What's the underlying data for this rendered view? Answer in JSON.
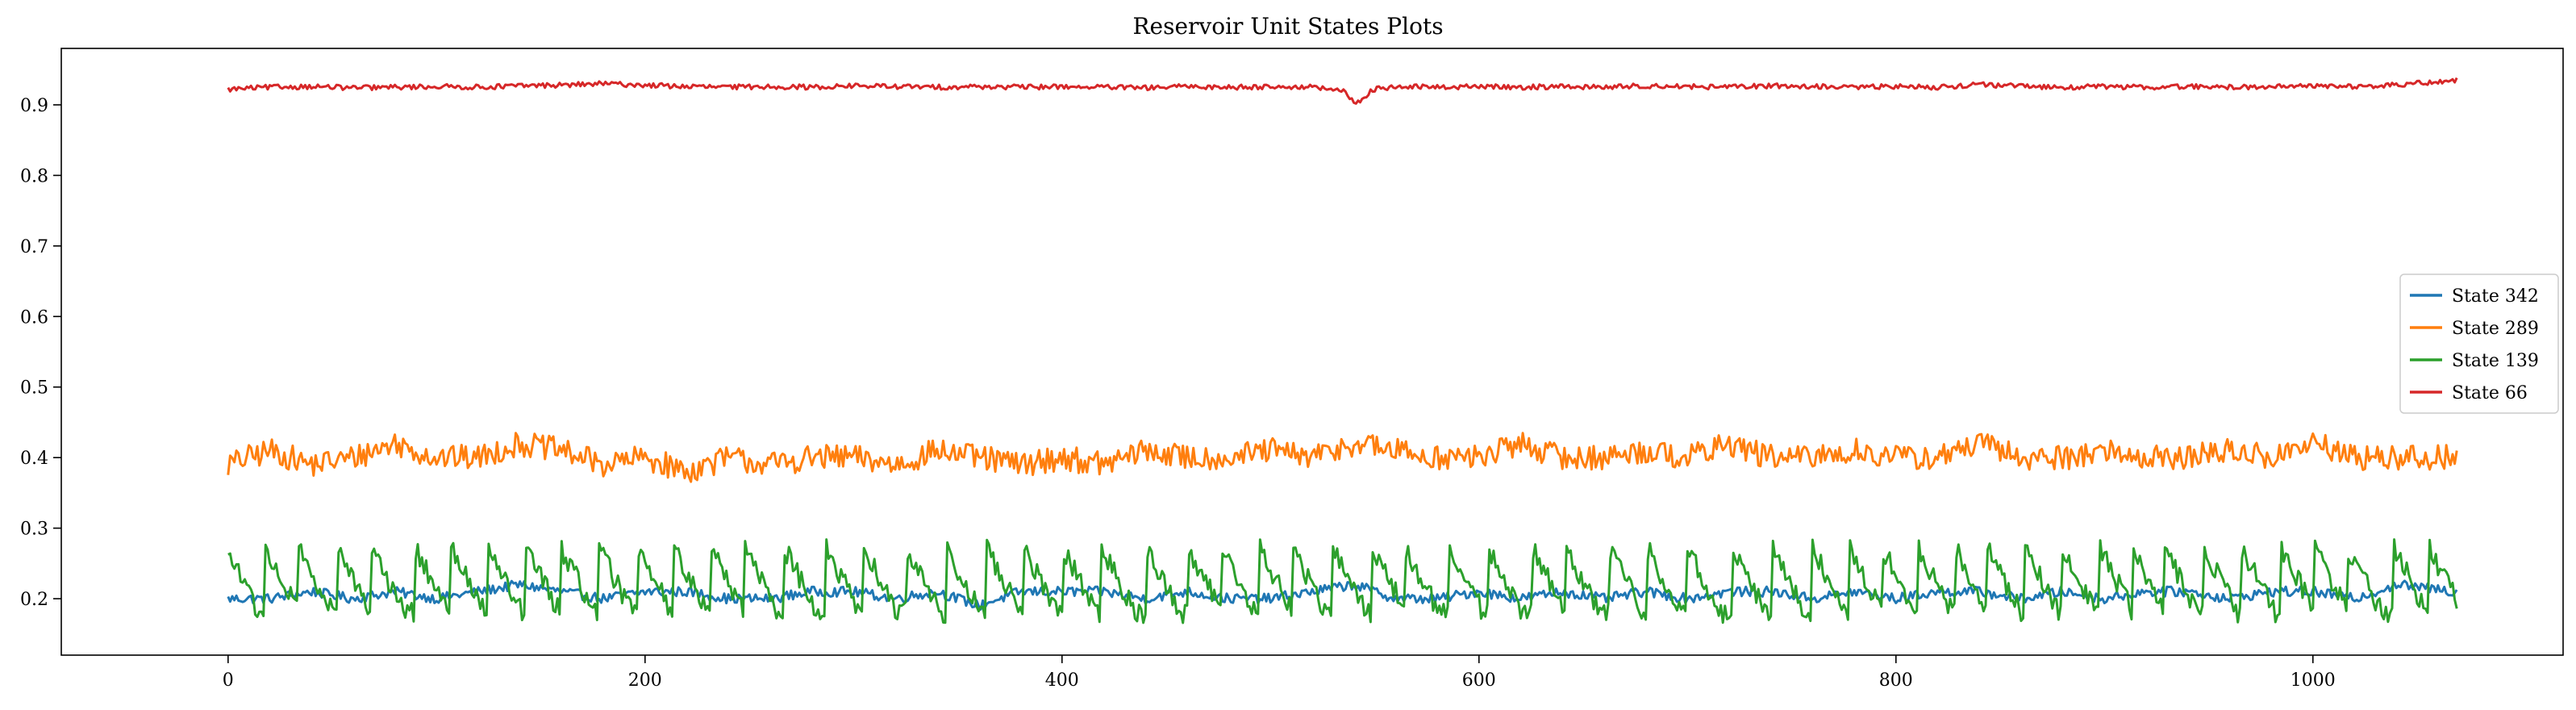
{
  "chart_data": {
    "type": "line",
    "title": "Reservoir Unit States Plots",
    "xlabel": "",
    "ylabel": "",
    "xlim": [
      -80,
      1120
    ],
    "ylim": [
      0.12,
      0.98
    ],
    "x_ticks": [
      0,
      200,
      400,
      600,
      800,
      1000
    ],
    "y_ticks": [
      0.2,
      0.3,
      0.4,
      0.5,
      0.6,
      0.7,
      0.8,
      0.9
    ],
    "x_tick_labels": [
      "0",
      "200",
      "400",
      "600",
      "800",
      "1000"
    ],
    "y_tick_labels": [
      "0.2",
      "0.3",
      "0.4",
      "0.5",
      "0.6",
      "0.7",
      "0.8",
      "0.9"
    ],
    "grid": false,
    "legend_position": "center-right",
    "n_points": 1070,
    "series": [
      {
        "name": "State 342",
        "color": "#1f77b4",
        "x": [
          0,
          20,
          40,
          60,
          80,
          100,
          120,
          140,
          160,
          180,
          200,
          220,
          240,
          260,
          280,
          300,
          320,
          340,
          360,
          380,
          400,
          420,
          440,
          460,
          480,
          500,
          520,
          540,
          560,
          580,
          600,
          620,
          640,
          660,
          680,
          700,
          720,
          740,
          760,
          780,
          800,
          820,
          840,
          860,
          880,
          900,
          920,
          940,
          960,
          980,
          1000,
          1020,
          1040,
          1069
        ],
        "values": [
          0.2,
          0.2,
          0.21,
          0.2,
          0.21,
          0.2,
          0.21,
          0.22,
          0.21,
          0.2,
          0.21,
          0.21,
          0.2,
          0.2,
          0.21,
          0.21,
          0.2,
          0.21,
          0.19,
          0.21,
          0.21,
          0.21,
          0.2,
          0.21,
          0.2,
          0.2,
          0.21,
          0.22,
          0.2,
          0.2,
          0.21,
          0.2,
          0.21,
          0.2,
          0.21,
          0.2,
          0.21,
          0.21,
          0.2,
          0.21,
          0.2,
          0.21,
          0.21,
          0.2,
          0.21,
          0.2,
          0.21,
          0.21,
          0.2,
          0.21,
          0.21,
          0.2,
          0.22,
          0.21
        ]
      },
      {
        "name": "State 289",
        "color": "#ff7f0e",
        "x": [
          0,
          20,
          40,
          60,
          80,
          100,
          120,
          140,
          160,
          180,
          200,
          220,
          240,
          260,
          280,
          300,
          320,
          340,
          360,
          380,
          400,
          420,
          440,
          460,
          480,
          500,
          520,
          540,
          560,
          580,
          600,
          620,
          640,
          660,
          680,
          700,
          720,
          740,
          760,
          780,
          800,
          820,
          840,
          860,
          880,
          900,
          920,
          940,
          960,
          980,
          1000,
          1020,
          1040,
          1069
        ],
        "values": [
          0.39,
          0.41,
          0.39,
          0.4,
          0.42,
          0.4,
          0.4,
          0.42,
          0.41,
          0.39,
          0.4,
          0.38,
          0.4,
          0.39,
          0.4,
          0.4,
          0.39,
          0.41,
          0.4,
          0.39,
          0.4,
          0.39,
          0.41,
          0.4,
          0.4,
          0.41,
          0.4,
          0.42,
          0.41,
          0.4,
          0.4,
          0.42,
          0.4,
          0.4,
          0.41,
          0.4,
          0.42,
          0.4,
          0.4,
          0.41,
          0.4,
          0.4,
          0.42,
          0.4,
          0.4,
          0.41,
          0.4,
          0.4,
          0.41,
          0.4,
          0.42,
          0.4,
          0.4,
          0.4
        ]
      },
      {
        "name": "State 139",
        "color": "#2ca02c",
        "x": [
          0,
          20,
          40,
          60,
          80,
          100,
          120,
          140,
          160,
          180,
          200,
          220,
          240,
          260,
          280,
          300,
          320,
          340,
          360,
          380,
          400,
          420,
          440,
          460,
          480,
          500,
          520,
          540,
          560,
          580,
          600,
          620,
          640,
          660,
          680,
          700,
          720,
          740,
          760,
          780,
          800,
          820,
          840,
          860,
          880,
          900,
          920,
          940,
          960,
          980,
          1000,
          1020,
          1040,
          1069
        ],
        "values": [
          0.23,
          0.24,
          0.22,
          0.24,
          0.21,
          0.25,
          0.22,
          0.26,
          0.21,
          0.24,
          0.22,
          0.25,
          0.22,
          0.24,
          0.21,
          0.26,
          0.22,
          0.24,
          0.21,
          0.25,
          0.22,
          0.24,
          0.21,
          0.26,
          0.22,
          0.25,
          0.22,
          0.27,
          0.21,
          0.24,
          0.22,
          0.25,
          0.21,
          0.24,
          0.22,
          0.26,
          0.21,
          0.25,
          0.22,
          0.24,
          0.21,
          0.25,
          0.22,
          0.24,
          0.21,
          0.26,
          0.22,
          0.24,
          0.21,
          0.25,
          0.22,
          0.24,
          0.21,
          0.25
        ]
      },
      {
        "name": "State 66",
        "color": "#d62728",
        "x": [
          0,
          20,
          40,
          60,
          80,
          100,
          120,
          140,
          160,
          180,
          200,
          220,
          240,
          260,
          280,
          300,
          320,
          340,
          360,
          380,
          400,
          420,
          440,
          460,
          480,
          500,
          520,
          540,
          560,
          580,
          600,
          620,
          640,
          660,
          680,
          700,
          720,
          740,
          760,
          780,
          800,
          820,
          840,
          860,
          880,
          900,
          920,
          940,
          960,
          980,
          1000,
          1020,
          1040,
          1069
        ],
        "values": [
          0.922,
          0.925,
          0.926,
          0.924,
          0.925,
          0.926,
          0.925,
          0.927,
          0.928,
          0.93,
          0.928,
          0.926,
          0.925,
          0.926,
          0.925,
          0.927,
          0.926,
          0.925,
          0.926,
          0.925,
          0.926,
          0.925,
          0.924,
          0.926,
          0.925,
          0.926,
          0.925,
          0.918,
          0.926,
          0.925,
          0.926,
          0.925,
          0.926,
          0.925,
          0.927,
          0.926,
          0.925,
          0.927,
          0.926,
          0.925,
          0.926,
          0.925,
          0.929,
          0.926,
          0.925,
          0.926,
          0.925,
          0.926,
          0.925,
          0.926,
          0.927,
          0.926,
          0.928,
          0.935
        ]
      }
    ]
  }
}
